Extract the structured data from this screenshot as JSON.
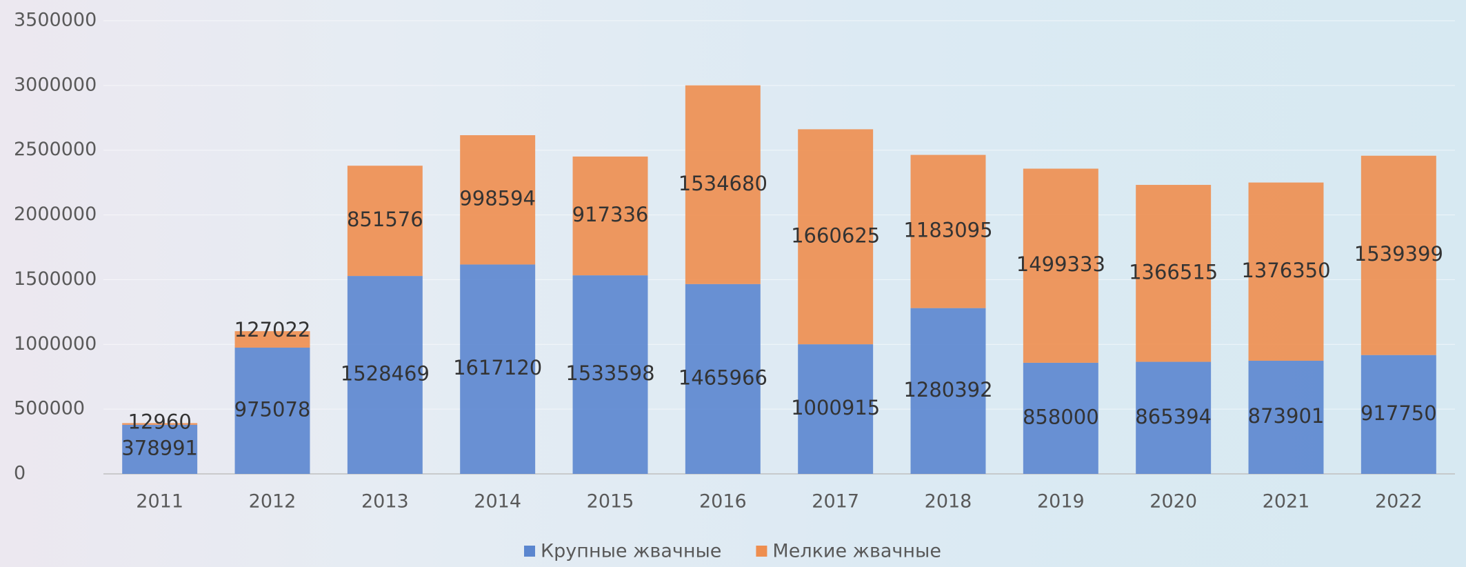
{
  "chart_data": {
    "type": "stacked_bar",
    "categories": [
      "2011",
      "2012",
      "2013",
      "2014",
      "2015",
      "2016",
      "2017",
      "2018",
      "2019",
      "2020",
      "2021",
      "2022"
    ],
    "series": [
      {
        "name": "Крупные жвачные",
        "color": "#5b86cf",
        "values": [
          378991,
          975078,
          1528469,
          1617120,
          1533598,
          1465966,
          1000915,
          1280392,
          858000,
          865394,
          873901,
          917750
        ]
      },
      {
        "name": "Мелкие жвачные",
        "color": "#ee8e4f",
        "values": [
          12960,
          127022,
          851576,
          998594,
          917336,
          1534680,
          1660625,
          1183095,
          1499333,
          1366515,
          1376350,
          1539399
        ]
      }
    ],
    "ylim": [
      0,
      3500000
    ],
    "yticks": [
      0,
      500000,
      1000000,
      1500000,
      2000000,
      2500000,
      3000000,
      3500000
    ],
    "grid": true
  }
}
